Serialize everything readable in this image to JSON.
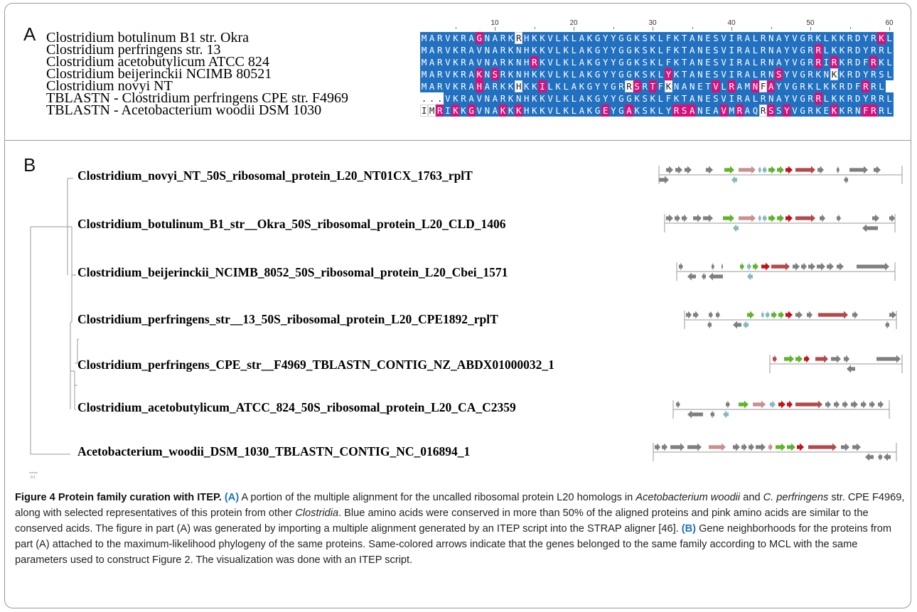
{
  "panel_a_label": "A",
  "panel_b_label": "B",
  "alignment": {
    "ruler": [
      "10",
      "20",
      "30",
      "40",
      "50",
      "60"
    ],
    "sequence_names": [
      "Clostridium botulinum B1 str. Okra",
      "Clostridium perfringens str. 13",
      "Clostridium acetobutylicum ATCC 824",
      "Clostridium beijerinckii NCIMB 80521",
      "Clostridium novyi NT",
      "TBLASTN - Clostridium perfringens CPE str. F4969",
      "TBLASTN - Acetobacterium woodii DSM 1030"
    ],
    "sequences": [
      "MARVKRAGNARKRHKKVLKLAKGYYGGKSKLFKTANESVIRALRNAYVGRKLKKRDYRKL",
      "MARVKRAVNARKNHKKVLKLAKGYYGGKSKLFKTANESVIRALRNAYVGRRLKKRDYRRL",
      "MARVKRAVNARKNHRKVLKLAKGYYGGKSKLFKTANESVIRALRNAYVGRRIRKRDFRKL",
      "MARVKRAKNSRKNHKKVLKLAKGYYGGKSKLYKTANESVIRALRNSYVGRKNKKRDYRSL",
      "MARVKRAHARKKHKKILKLAKGYYGRRSRTFKNANETVLRAMNFAYVGRKLKKRDFRRL",
      "...VKRAVNARKNHKKVLKLAKGYYGGKSKLFKTANESVIRALRNAYVGRRLKKRDYRRL",
      "IMRIKKGVNAKKKHKKVLKLAKGEYGAKSKLYRSANEAVMRAQRSSYVGRKEKKRNFRRL"
    ],
    "residue_classes": [
      "bbbbbbbpbbbbwbbbbbbbbbbbbbbbbbbbbbbbbbbbbbbbbbbbbbbbbbbbbbpb",
      "bbbbbbbbbbbbbbbbbbbbbbbbbbbbbbbbbbbbbbbbbbbbbbbbbbpbbbbbbbbb",
      "bbbbbbbbbbbbbbpbbbbbbbbbbbbbbbbbbbbbbbbbbbbbbbbbbbpbpbbbbpbb",
      "bbbbbbbpbpbbbbbbbbbbbbbbbbbbbbbpbbbbbbbbbbbbbpbbbbbbwbbbbbbb",
      "bbbbbbbpbbbbwbbpbbbbbbbbbbwpbpbwbbbbbpbpbbpwpbbbbbbbbbbbpbbb",
      "gggbbbbbbbbbbbbbbbbbbbbbbbbbbbbbbbbbbbbbbbbbbbbbbbpbbbbbbbbb",
      "wwpbpbpbbbpbpbbbbbbbbbbpbbpbbbbbpppbbbpbpbbwpbpbbbbbpbbbppbb"
    ]
  },
  "tree": {
    "leaves": [
      "Clostridium_novyi_NT_50S_ribosomal_protein_L20_NT01CX_1763_rplT",
      "Clostridium_botulinum_B1_str__Okra_50S_ribosomal_protein_L20_CLD_1406",
      "Clostridium_beijerinckii_NCIMB_8052_50S_ribosomal_protein_L20_Cbei_1571",
      "Clostridium_perfringens_str__13_50S_ribosomal_protein_L20_CPE1892_rplT",
      "Clostridium_perfringens_CPE_str__F4969_TBLASTN_CONTIG_NZ_ABDX01000032_1",
      "Clostridium_acetobutylicum_ATCC_824_50S_ribosomal_protein_L20_CA_C2359",
      "Acetobacterium_woodii_DSM_1030_TBLASTN_CONTIG_NC_016894_1"
    ],
    "scale_label": "0.1"
  },
  "neighborhoods": {
    "colors": {
      "gray": "#7f7f7f",
      "green": "#5fb42c",
      "pink": "#c9908f",
      "teal": "#86b8bf",
      "red": "#c0121a",
      "darkred": "#b34a4a"
    }
  },
  "caption": {
    "figure_label": "Figure 4",
    "title": "Protein family curation with ITEP.",
    "a_label": "(A)",
    "a_text_1": "A portion of the multiple alignment for the uncalled ribosomal protein L20 homologs in",
    "a_italic_1": "Acetobacterium woodii",
    "a_text_2": "and",
    "a_italic_2": "C. perfringens",
    "a_text_3": "str. CPE F4969, along with selected representatives of this protein from other",
    "a_italic_3": "Clostridia",
    "a_text_4": ". Blue amino acids were conserved in more than 50% of the aligned proteins and pink amino acids are similar to the conserved acids. The figure in part (A) was generated by importing a multiple alignment generated by an ITEP script into the STRAP aligner [46].",
    "b_label": "(B)",
    "b_text": "Gene neighborhoods for the proteins from part (A) attached to the maximum-likelihood phylogeny of the same proteins. Same-colored arrows indicate that the genes belonged to the same family according to MCL with the same parameters used to construct Figure 2. The visualization was done with an ITEP script."
  }
}
